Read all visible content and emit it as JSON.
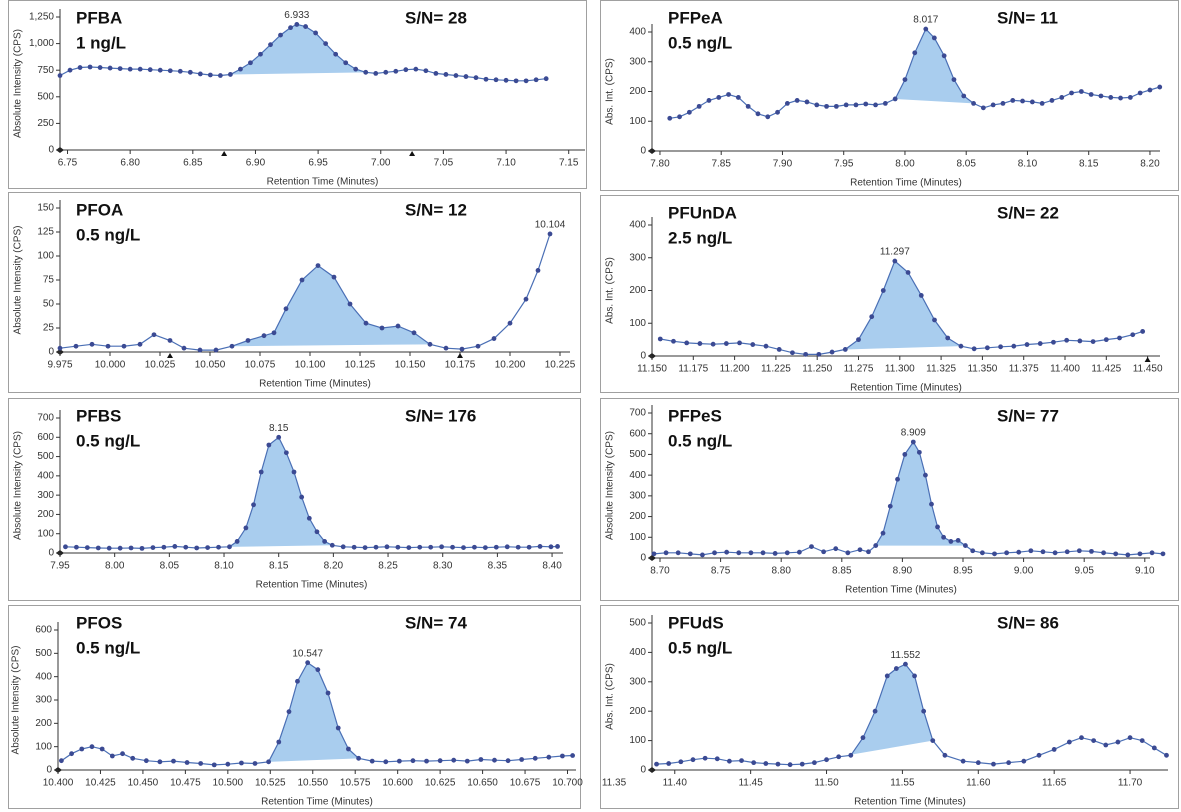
{
  "chart_data": [
    {
      "type": "line",
      "title": "PFBA",
      "subtitle": "1 ng/L",
      "annotation": "S/N= 28",
      "peak_label": "6.933",
      "x_label": "Retention Time (Minutes)",
      "y_label": "Absolute Intensity (CPS)",
      "color": "#4a6fb5",
      "x": [
        6.744,
        6.752,
        6.76,
        6.768,
        6.776,
        6.784,
        6.792,
        6.8,
        6.808,
        6.816,
        6.824,
        6.832,
        6.84,
        6.848,
        6.856,
        6.864,
        6.872,
        6.88,
        6.888,
        6.896,
        6.904,
        6.912,
        6.92,
        6.928,
        6.933,
        6.94,
        6.948,
        6.956,
        6.964,
        6.972,
        6.98,
        6.988,
        6.996,
        7.004,
        7.012,
        7.02,
        7.028,
        7.036,
        7.044,
        7.052,
        7.06,
        7.068,
        7.076,
        7.084,
        7.092,
        7.1,
        7.108,
        7.116,
        7.124,
        7.132
      ],
      "values": [
        700,
        750,
        775,
        780,
        775,
        770,
        765,
        760,
        760,
        755,
        750,
        745,
        740,
        730,
        715,
        705,
        700,
        710,
        760,
        820,
        900,
        990,
        1080,
        1150,
        1180,
        1160,
        1100,
        1000,
        900,
        820,
        760,
        730,
        720,
        730,
        740,
        755,
        760,
        745,
        720,
        710,
        700,
        690,
        680,
        665,
        660,
        655,
        650,
        650,
        660,
        670
      ],
      "xlim": [
        6.744,
        7.163
      ],
      "ylim": [
        0,
        1250
      ],
      "xticks": [
        6.75,
        {
          "value": 6.8,
          "label": "6.80"
        },
        6.85,
        {
          "value": 6.9,
          "label": "6.90"
        },
        6.95,
        {
          "value": 7.0,
          "label": "7.00"
        },
        7.05,
        {
          "value": 7.1,
          "label": "7.10"
        },
        7.15
      ],
      "yticks": [
        0,
        250,
        500,
        750,
        {
          "value": 1000,
          "label": "1,000"
        },
        {
          "value": 1250,
          "label": "1,250"
        }
      ],
      "peak_range": [
        6.876,
        6.99
      ],
      "markers": [
        6.875,
        7.025
      ]
    },
    {
      "type": "line",
      "title": "PFPeA",
      "subtitle": "0.5 ng/L",
      "annotation": "S/N= 11",
      "peak_label": "8.017",
      "x_label": "Retention Time (Minutes)",
      "y_label": "Abs. Int. (CPS)",
      "color": "#4a6fb5",
      "x": [
        7.808,
        7.816,
        7.824,
        7.832,
        7.84,
        7.848,
        7.856,
        7.864,
        7.872,
        7.88,
        7.888,
        7.896,
        7.904,
        7.912,
        7.92,
        7.928,
        7.936,
        7.944,
        7.952,
        7.96,
        7.968,
        7.976,
        7.984,
        7.992,
        8.0,
        8.008,
        8.017,
        8.024,
        8.032,
        8.04,
        8.048,
        8.056,
        8.064,
        8.072,
        8.08,
        8.088,
        8.096,
        8.104,
        8.112,
        8.12,
        8.128,
        8.136,
        8.144,
        8.152,
        8.16,
        8.168,
        8.176,
        8.184,
        8.192,
        8.2,
        8.208
      ],
      "values": [
        110,
        115,
        130,
        150,
        170,
        180,
        190,
        180,
        150,
        125,
        115,
        130,
        160,
        170,
        165,
        155,
        150,
        150,
        155,
        155,
        158,
        155,
        160,
        175,
        240,
        330,
        410,
        380,
        320,
        240,
        185,
        160,
        145,
        155,
        160,
        170,
        168,
        165,
        160,
        170,
        180,
        195,
        200,
        190,
        185,
        180,
        178,
        180,
        195,
        205,
        215
      ],
      "xlim": [
        7.7935,
        8.2082
      ],
      "ylim": [
        0,
        400
      ],
      "xticks": [
        {
          "value": 7.8,
          "label": "7.80"
        },
        7.85,
        {
          "value": 7.9,
          "label": "7.90"
        },
        7.95,
        {
          "value": 8.0,
          "label": "8.00"
        },
        8.05,
        {
          "value": 8.1,
          "label": "8.10"
        },
        8.15,
        {
          "value": 8.2,
          "label": "8.20"
        }
      ],
      "yticks": [
        0,
        100,
        200,
        300,
        400
      ],
      "peak_range": [
        7.99,
        8.06
      ]
    },
    {
      "type": "line",
      "title": "PFOA",
      "subtitle": "0.5 ng/L",
      "annotation": "S/N= 12",
      "peak_label": "10.104",
      "x_label": "Retention Time (Minutes)",
      "y_label": "Absolute Intensity (CPS)",
      "color": "#4a6fb5",
      "x": [
        9.975,
        9.983,
        9.991,
        9.999,
        10.007,
        10.015,
        10.022,
        10.03,
        10.037,
        10.045,
        10.053,
        10.061,
        10.069,
        10.077,
        10.082,
        10.088,
        10.096,
        10.104,
        10.112,
        10.12,
        10.128,
        10.136,
        10.144,
        10.152,
        10.16,
        10.168,
        10.176,
        10.184,
        10.192,
        10.2,
        10.208,
        10.214,
        10.22
      ],
      "values": [
        4,
        6,
        8,
        6,
        6,
        8,
        18,
        12,
        4,
        2,
        2,
        6,
        12,
        17,
        20,
        45,
        75,
        90,
        78,
        50,
        30,
        25,
        27,
        20,
        8,
        4,
        3,
        6,
        14,
        30,
        55,
        85,
        123
      ],
      "xlim": [
        9.975,
        10.23
      ],
      "ylim": [
        0,
        150
      ],
      "xticks": [
        9.975,
        {
          "value": 10.0,
          "label": "10.000"
        },
        10.025,
        {
          "value": 10.05,
          "label": "10.050"
        },
        10.075,
        {
          "value": 10.1,
          "label": "10.100"
        },
        10.125,
        {
          "value": 10.15,
          "label": "10.150"
        },
        10.175,
        {
          "value": 10.2,
          "label": "10.200"
        },
        10.225
      ],
      "yticks": [
        0,
        25,
        50,
        75,
        100,
        125,
        150
      ],
      "peak_range": [
        10.061,
        10.165
      ],
      "markers": [
        10.03,
        10.175
      ]
    },
    {
      "type": "line",
      "title": "PFUnDA",
      "subtitle": "2.5 ng/L",
      "annotation": "S/N= 22",
      "peak_label": "11.297",
      "x_label": "Retention Time (Minutes)",
      "y_label": "Abs. Int. (CPS)",
      "color": "#4a6fb5",
      "x": [
        11.155,
        11.163,
        11.171,
        11.179,
        11.187,
        11.195,
        11.203,
        11.211,
        11.219,
        11.227,
        11.235,
        11.243,
        11.251,
        11.259,
        11.267,
        11.275,
        11.283,
        11.29,
        11.297,
        11.305,
        11.313,
        11.321,
        11.329,
        11.337,
        11.345,
        11.353,
        11.361,
        11.369,
        11.377,
        11.385,
        11.393,
        11.401,
        11.409,
        11.417,
        11.425,
        11.433,
        11.441,
        11.447
      ],
      "values": [
        52,
        45,
        40,
        38,
        36,
        38,
        40,
        35,
        30,
        20,
        10,
        5,
        5,
        12,
        20,
        50,
        120,
        200,
        290,
        255,
        185,
        110,
        55,
        30,
        22,
        25,
        28,
        30,
        35,
        38,
        42,
        48,
        46,
        44,
        50,
        55,
        65,
        75
      ],
      "xlim": [
        11.15,
        11.4575
      ],
      "ylim": [
        0,
        400
      ],
      "xticks": [
        {
          "value": 11.15,
          "label": "11.150"
        },
        11.175,
        {
          "value": 11.2,
          "label": "11.200"
        },
        11.225,
        {
          "value": 11.25,
          "label": "11.250"
        },
        11.275,
        {
          "value": 11.3,
          "label": "11.300"
        },
        11.325,
        {
          "value": 11.35,
          "label": "11.350"
        },
        11.375,
        {
          "value": 11.4,
          "label": "11.400"
        },
        11.425,
        {
          "value": 11.45,
          "label": "11.450"
        }
      ],
      "yticks": [
        0,
        100,
        200,
        300,
        400
      ],
      "peak_range": [
        11.267,
        11.337
      ],
      "markers": [
        11.45
      ]
    },
    {
      "type": "line",
      "title": "PFBS",
      "subtitle": "0.5 ng/L",
      "annotation": "S/N= 176",
      "peak_label": "8.15",
      "x_label": "Retention Time (Minutes)",
      "y_label": "Absolute Intensity (CPS)",
      "color": "#4a6fb5",
      "x": [
        7.955,
        7.965,
        7.975,
        7.985,
        7.995,
        8.005,
        8.015,
        8.025,
        8.035,
        8.045,
        8.055,
        8.065,
        8.075,
        8.085,
        8.095,
        8.105,
        8.112,
        8.12,
        8.127,
        8.134,
        8.141,
        8.15,
        8.157,
        8.164,
        8.171,
        8.178,
        8.185,
        8.192,
        8.199,
        8.209,
        8.219,
        8.229,
        8.239,
        8.249,
        8.259,
        8.269,
        8.279,
        8.289,
        8.299,
        8.309,
        8.319,
        8.329,
        8.339,
        8.349,
        8.359,
        8.369,
        8.379,
        8.389,
        8.399,
        8.405
      ],
      "values": [
        32,
        30,
        28,
        26,
        25,
        25,
        26,
        24,
        28,
        30,
        34,
        30,
        26,
        28,
        30,
        32,
        60,
        130,
        250,
        420,
        560,
        600,
        520,
        420,
        290,
        180,
        110,
        60,
        40,
        32,
        30,
        28,
        30,
        32,
        30,
        28,
        30,
        30,
        32,
        30,
        28,
        30,
        28,
        30,
        32,
        30,
        30,
        34,
        32,
        34
      ],
      "xlim": [
        7.95,
        8.41
      ],
      "ylim": [
        0,
        700
      ],
      "xticks": [
        7.95,
        {
          "value": 8.0,
          "label": "8.00"
        },
        8.05,
        {
          "value": 8.1,
          "label": "8.10"
        },
        8.15,
        {
          "value": 8.2,
          "label": "8.20"
        },
        8.25,
        {
          "value": 8.3,
          "label": "8.30"
        },
        8.35,
        {
          "value": 8.4,
          "label": "8.40"
        }
      ],
      "yticks": [
        0,
        100,
        200,
        300,
        400,
        500,
        600,
        700
      ],
      "peak_range": [
        8.105,
        8.2
      ]
    },
    {
      "type": "line",
      "title": "PFPeS",
      "subtitle": "0.5 ng/L",
      "annotation": "S/N= 77",
      "peak_label": "8.909",
      "x_label": "Retention Time (Minutes)",
      "y_label": "Absolute Intensity (CPS)",
      "color": "#4a6fb5",
      "x": [
        8.695,
        8.705,
        8.715,
        8.725,
        8.735,
        8.745,
        8.755,
        8.765,
        8.775,
        8.785,
        8.795,
        8.805,
        8.815,
        8.825,
        8.835,
        8.845,
        8.855,
        8.865,
        8.872,
        8.878,
        8.884,
        8.89,
        8.896,
        8.902,
        8.909,
        8.914,
        8.919,
        8.924,
        8.929,
        8.934,
        8.94,
        8.946,
        8.952,
        8.958,
        8.966,
        8.976,
        8.986,
        8.996,
        9.006,
        9.016,
        9.026,
        9.036,
        9.046,
        9.056,
        9.066,
        9.076,
        9.086,
        9.096,
        9.106,
        9.115
      ],
      "values": [
        20,
        25,
        25,
        20,
        15,
        25,
        28,
        25,
        25,
        25,
        22,
        25,
        28,
        55,
        30,
        45,
        25,
        40,
        30,
        60,
        120,
        250,
        380,
        500,
        560,
        510,
        400,
        260,
        150,
        100,
        80,
        85,
        60,
        35,
        25,
        20,
        25,
        28,
        35,
        30,
        25,
        30,
        35,
        32,
        25,
        20,
        15,
        20,
        25,
        20
      ],
      "xlim": [
        8.6934,
        9.1043
      ],
      "ylim": [
        0,
        700
      ],
      "xticks": [
        {
          "value": 8.7,
          "label": "8.70"
        },
        8.75,
        {
          "value": 8.8,
          "label": "8.80"
        },
        8.85,
        {
          "value": 8.9,
          "label": "8.90"
        },
        8.95,
        {
          "value": 9.0,
          "label": "9.00"
        },
        9.05,
        {
          "value": 9.1,
          "label": "9.10"
        }
      ],
      "yticks": [
        0,
        100,
        200,
        300,
        400,
        500,
        600,
        700
      ],
      "peak_range": [
        8.878,
        8.952
      ]
    },
    {
      "type": "line",
      "title": "PFOS",
      "subtitle": "0.5 ng/L",
      "annotation": "S/N= 74",
      "peak_label": "10.547",
      "x_label": "Retention Time (Minutes)",
      "y_label": "Absolute Intensity (CPS)",
      "color": "#4a6fb5",
      "x": [
        10.402,
        10.408,
        10.414,
        10.42,
        10.426,
        10.432,
        10.438,
        10.444,
        10.452,
        10.46,
        10.468,
        10.476,
        10.484,
        10.492,
        10.5,
        10.508,
        10.516,
        10.524,
        10.53,
        10.536,
        10.541,
        10.547,
        10.553,
        10.559,
        10.565,
        10.571,
        10.577,
        10.585,
        10.593,
        10.601,
        10.609,
        10.617,
        10.625,
        10.633,
        10.641,
        10.649,
        10.657,
        10.665,
        10.673,
        10.681,
        10.689,
        10.697,
        10.703
      ],
      "values": [
        40,
        70,
        90,
        100,
        90,
        60,
        70,
        50,
        40,
        35,
        38,
        32,
        28,
        22,
        25,
        30,
        28,
        35,
        120,
        250,
        380,
        460,
        430,
        330,
        180,
        90,
        50,
        38,
        35,
        38,
        40,
        38,
        40,
        42,
        38,
        45,
        42,
        40,
        45,
        50,
        55,
        60,
        62
      ],
      "xlim": [
        10.4,
        10.705
      ],
      "ylim": [
        0,
        600
      ],
      "xticks": [
        {
          "value": 10.4,
          "label": "10.400"
        },
        10.425,
        {
          "value": 10.45,
          "label": "10.450"
        },
        10.475,
        {
          "value": 10.5,
          "label": "10.500"
        },
        10.525,
        {
          "value": 10.55,
          "label": "10.550"
        },
        10.575,
        {
          "value": 10.6,
          "label": "10.600"
        },
        10.625,
        {
          "value": 10.65,
          "label": "10.650"
        },
        10.675,
        {
          "value": 10.7,
          "label": "10.700"
        }
      ],
      "yticks": [
        0,
        100,
        200,
        300,
        400,
        500,
        600
      ],
      "peak_range": [
        10.524,
        10.58
      ]
    },
    {
      "type": "line",
      "title": "PFUdS",
      "subtitle": "0.5 ng/L",
      "annotation": "S/N= 86",
      "peak_label": "11.552",
      "x_label": "Retention Time (Minutes)",
      "y_label": "Abs. Int. (CPS)",
      "color": "#4a6fb5",
      "x": [
        11.388,
        11.396,
        11.404,
        11.412,
        11.42,
        11.428,
        11.436,
        11.444,
        11.452,
        11.46,
        11.468,
        11.476,
        11.484,
        11.492,
        11.5,
        11.508,
        11.516,
        11.524,
        11.532,
        11.54,
        11.546,
        11.552,
        11.558,
        11.564,
        11.57,
        11.578,
        11.59,
        11.6,
        11.61,
        11.62,
        11.63,
        11.64,
        11.65,
        11.66,
        11.668,
        11.676,
        11.684,
        11.692,
        11.7,
        11.708,
        11.716,
        11.724
      ],
      "values": [
        20,
        22,
        28,
        35,
        40,
        38,
        30,
        32,
        25,
        22,
        20,
        18,
        20,
        25,
        35,
        45,
        50,
        110,
        200,
        320,
        345,
        360,
        320,
        200,
        100,
        50,
        30,
        25,
        20,
        25,
        30,
        50,
        70,
        95,
        110,
        100,
        85,
        95,
        110,
        100,
        75,
        50
      ],
      "xlim": [
        11.385,
        11.725
      ],
      "ylim": [
        0,
        500
      ],
      "xticks": [
        11.35,
        {
          "value": 11.4,
          "label": "11.40"
        },
        11.45,
        {
          "value": 11.5,
          "label": "11.50"
        },
        11.55,
        {
          "value": 11.6,
          "label": "11.60"
        },
        11.65,
        {
          "value": 11.7,
          "label": "11.70"
        }
      ],
      "yticks": [
        0,
        100,
        200,
        300,
        400,
        500
      ],
      "peak_range": [
        11.508,
        11.57
      ]
    }
  ]
}
